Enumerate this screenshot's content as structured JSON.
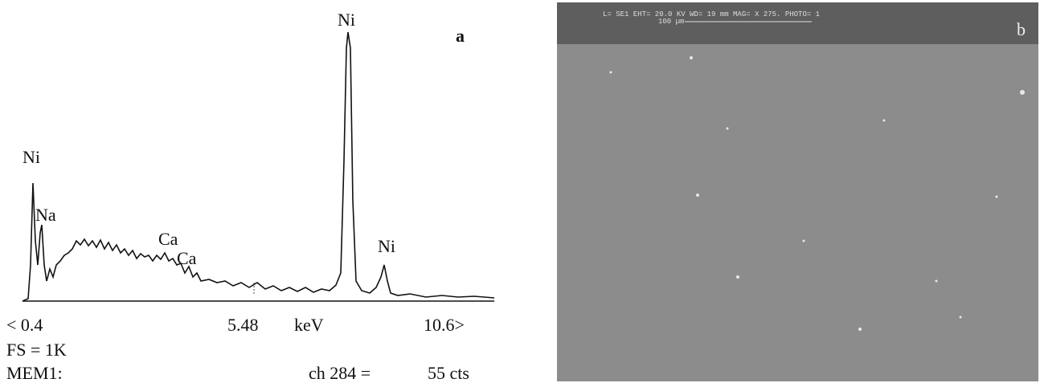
{
  "panel_a": {
    "peak_labels": [
      "Ni",
      "Na",
      "Ca",
      "Ca",
      "Ni",
      "Ni"
    ],
    "panel_label": "a",
    "axis_labels": {
      "left": "< 0.4",
      "middle": "5.48",
      "unit": "keV",
      "right": "10.6>"
    },
    "footer": {
      "fs": "FS = 1K",
      "mem": "MEM1:",
      "channel": "ch 284 =",
      "counts": "55 cts"
    }
  },
  "panel_b": {
    "header": "L= SE1    EHT= 20.0 KV   WD= 19   mm     MAG= X 275.   PHOTO= 1",
    "scale_bar": "100 µm",
    "panel_label": "b"
  }
}
